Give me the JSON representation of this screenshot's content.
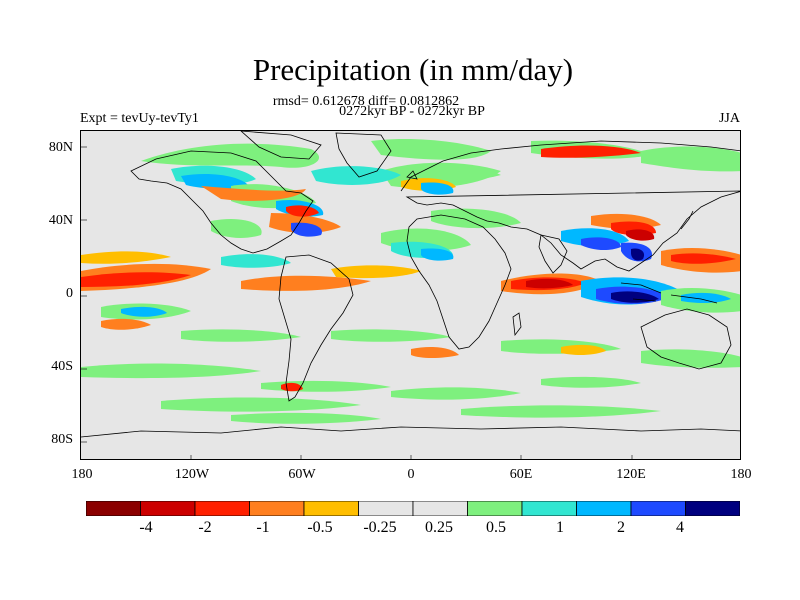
{
  "title": "Precipitation (in mm/day)",
  "stats": "rmsd= 0.612678 diff= 0.0812862",
  "period": "0272kyr BP - 0272kyr BP",
  "experiment": "Expt = tevUy-tevTy1",
  "season": "JJA",
  "lat_ticks": [
    "80N",
    "40N",
    "0",
    "40S",
    "80S"
  ],
  "lon_ticks": [
    "180",
    "120W",
    "60W",
    "0",
    "60E",
    "120E",
    "180"
  ],
  "colorbar": {
    "colors": [
      "#8b0000",
      "#cc0000",
      "#ff2000",
      "#ff7f1f",
      "#ffbe00",
      "#e6e6e6",
      "#e6e6e6",
      "#7ef07e",
      "#31e6d1",
      "#00b8ff",
      "#1e4aff",
      "#00007f"
    ],
    "labels": [
      "-4",
      "-2",
      "-1",
      "-0.5",
      "-0.25",
      "0.25",
      "0.5",
      "1",
      "2",
      "4"
    ]
  },
  "map_colors": {
    "background": "#e6e6e6",
    "coast": "#000000"
  }
}
